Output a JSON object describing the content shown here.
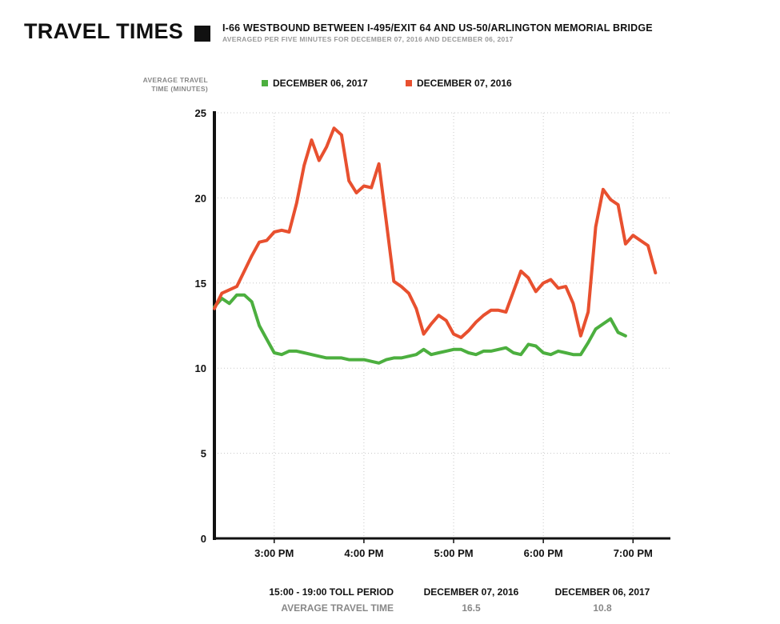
{
  "header": {
    "title": "TRAVEL TIMES",
    "main": "I-66 WESTBOUND BETWEEN I-495/EXIT 64 AND US-50/ARLINGTON MEMORIAL BRIDGE",
    "sub": "AVERAGED PER FIVE MINUTES FOR DECEMBER 07, 2016 AND DECEMBER 06, 2017"
  },
  "summary": {
    "period_label": "15:00 - 19:00 TOLL PERIOD",
    "avg_label": "AVERAGE TRAVEL TIME",
    "col1_label": "DECEMBER 07, 2016",
    "col1_value": "16.5",
    "col2_label": "DECEMBER 06, 2017",
    "col2_value": "10.8"
  },
  "chart_data": {
    "type": "line",
    "ylabel_lines": [
      "AVERAGE TRAVEL",
      "TIME (MINUTES)"
    ],
    "ylim": [
      0,
      25
    ],
    "yticks": [
      0,
      5,
      10,
      15,
      20,
      25
    ],
    "xlim": [
      "14:20",
      "19:25"
    ],
    "xticks": [
      {
        "t": "15:00",
        "label": "3:00 PM"
      },
      {
        "t": "16:00",
        "label": "4:00 PM"
      },
      {
        "t": "17:00",
        "label": "5:00 PM"
      },
      {
        "t": "18:00",
        "label": "6:00 PM"
      },
      {
        "t": "19:00",
        "label": "7:00 PM"
      }
    ],
    "grid": true,
    "legend_position": "top",
    "series": [
      {
        "name": "DECEMBER 06, 2017",
        "color": "#4caf3f",
        "points": [
          [
            "14:20",
            13.6
          ],
          [
            "14:25",
            14.1
          ],
          [
            "14:30",
            13.8
          ],
          [
            "14:35",
            14.3
          ],
          [
            "14:40",
            14.3
          ],
          [
            "14:45",
            13.9
          ],
          [
            "14:50",
            12.5
          ],
          [
            "14:55",
            11.7
          ],
          [
            "15:00",
            10.9
          ],
          [
            "15:05",
            10.8
          ],
          [
            "15:10",
            11.0
          ],
          [
            "15:15",
            11.0
          ],
          [
            "15:20",
            10.9
          ],
          [
            "15:25",
            10.8
          ],
          [
            "15:30",
            10.7
          ],
          [
            "15:35",
            10.6
          ],
          [
            "15:40",
            10.6
          ],
          [
            "15:45",
            10.6
          ],
          [
            "15:50",
            10.5
          ],
          [
            "15:55",
            10.5
          ],
          [
            "16:00",
            10.5
          ],
          [
            "16:05",
            10.4
          ],
          [
            "16:10",
            10.3
          ],
          [
            "16:15",
            10.5
          ],
          [
            "16:20",
            10.6
          ],
          [
            "16:25",
            10.6
          ],
          [
            "16:30",
            10.7
          ],
          [
            "16:35",
            10.8
          ],
          [
            "16:40",
            11.1
          ],
          [
            "16:45",
            10.8
          ],
          [
            "16:50",
            10.9
          ],
          [
            "16:55",
            11.0
          ],
          [
            "17:00",
            11.1
          ],
          [
            "17:05",
            11.1
          ],
          [
            "17:10",
            10.9
          ],
          [
            "17:15",
            10.8
          ],
          [
            "17:20",
            11.0
          ],
          [
            "17:25",
            11.0
          ],
          [
            "17:30",
            11.1
          ],
          [
            "17:35",
            11.2
          ],
          [
            "17:40",
            10.9
          ],
          [
            "17:45",
            10.8
          ],
          [
            "17:50",
            11.4
          ],
          [
            "17:55",
            11.3
          ],
          [
            "18:00",
            10.9
          ],
          [
            "18:05",
            10.8
          ],
          [
            "18:10",
            11.0
          ],
          [
            "18:15",
            10.9
          ],
          [
            "18:20",
            10.8
          ],
          [
            "18:25",
            10.8
          ],
          [
            "18:30",
            11.5
          ],
          [
            "18:35",
            12.3
          ],
          [
            "18:40",
            12.6
          ],
          [
            "18:45",
            12.9
          ],
          [
            "18:50",
            12.1
          ],
          [
            "18:55",
            11.9
          ]
        ]
      },
      {
        "name": "DECEMBER 07, 2016",
        "color": "#e8502f",
        "points": [
          [
            "14:20",
            13.5
          ],
          [
            "14:25",
            14.4
          ],
          [
            "14:30",
            14.6
          ],
          [
            "14:35",
            14.8
          ],
          [
            "14:40",
            15.7
          ],
          [
            "14:45",
            16.6
          ],
          [
            "14:50",
            17.4
          ],
          [
            "14:55",
            17.5
          ],
          [
            "15:00",
            18.0
          ],
          [
            "15:05",
            18.1
          ],
          [
            "15:10",
            18.0
          ],
          [
            "15:15",
            19.7
          ],
          [
            "15:20",
            21.9
          ],
          [
            "15:25",
            23.4
          ],
          [
            "15:30",
            22.2
          ],
          [
            "15:35",
            23.0
          ],
          [
            "15:40",
            24.1
          ],
          [
            "15:45",
            23.7
          ],
          [
            "15:50",
            21.0
          ],
          [
            "15:55",
            20.3
          ],
          [
            "16:00",
            20.7
          ],
          [
            "16:05",
            20.6
          ],
          [
            "16:10",
            22.0
          ],
          [
            "16:15",
            18.6
          ],
          [
            "16:20",
            15.1
          ],
          [
            "16:25",
            14.8
          ],
          [
            "16:30",
            14.4
          ],
          [
            "16:35",
            13.5
          ],
          [
            "16:40",
            12.0
          ],
          [
            "16:45",
            12.6
          ],
          [
            "16:50",
            13.1
          ],
          [
            "16:55",
            12.8
          ],
          [
            "17:00",
            12.0
          ],
          [
            "17:05",
            11.8
          ],
          [
            "17:10",
            12.2
          ],
          [
            "17:15",
            12.7
          ],
          [
            "17:20",
            13.1
          ],
          [
            "17:25",
            13.4
          ],
          [
            "17:30",
            13.4
          ],
          [
            "17:35",
            13.3
          ],
          [
            "17:40",
            14.5
          ],
          [
            "17:45",
            15.7
          ],
          [
            "17:50",
            15.3
          ],
          [
            "17:55",
            14.5
          ],
          [
            "18:00",
            15.0
          ],
          [
            "18:05",
            15.2
          ],
          [
            "18:10",
            14.7
          ],
          [
            "18:15",
            14.8
          ],
          [
            "18:20",
            13.8
          ],
          [
            "18:25",
            11.9
          ],
          [
            "18:30",
            13.3
          ],
          [
            "18:35",
            18.3
          ],
          [
            "18:40",
            20.5
          ],
          [
            "18:45",
            19.9
          ],
          [
            "18:50",
            19.6
          ],
          [
            "18:55",
            17.3
          ],
          [
            "19:00",
            17.8
          ],
          [
            "19:05",
            17.5
          ],
          [
            "19:10",
            17.2
          ],
          [
            "19:15",
            15.6
          ]
        ]
      }
    ]
  }
}
